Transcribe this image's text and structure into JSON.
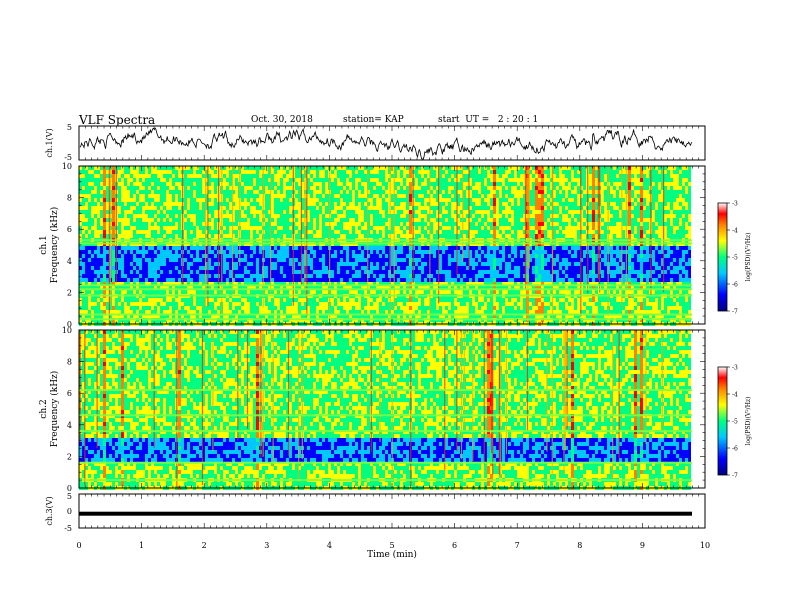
{
  "header": {
    "title": "VLF Spectra",
    "date": "Oct. 30, 2018",
    "station": "station= KAP",
    "start": "start  UT =   2 : 20 : 1"
  },
  "chart_data": [
    {
      "type": "line",
      "panel": "ch1-waveform",
      "ylabel": "ch.1(V)",
      "ylim": [
        -5,
        5
      ],
      "yticks": [
        "5",
        "-5"
      ],
      "xlim": [
        0,
        10
      ]
    },
    {
      "type": "heatmap",
      "panel": "ch1-spectrogram",
      "ylabel_top": "ch.1",
      "ylabel": "Frequency (kHz)",
      "ylim": [
        0,
        10
      ],
      "yticks": [
        "0",
        "2",
        "4",
        "6",
        "8",
        "10"
      ],
      "xlim": [
        0,
        10
      ],
      "colorbar": {
        "label": "log(PSD)(V²/Hz)",
        "range": [
          -7,
          -3
        ],
        "ticks": [
          "-3",
          "-4",
          "-5",
          "-6",
          "-7"
        ]
      },
      "bands_khz": [
        0.3,
        0.6,
        1.8,
        2.2,
        2.45,
        5.1,
        5.3
      ],
      "quiet_band_khz": [
        2.7,
        5.0
      ]
    },
    {
      "type": "heatmap",
      "panel": "ch2-spectrogram",
      "ylabel_top": "ch.2",
      "ylabel": "Frequency (kHz)",
      "ylim": [
        0,
        10
      ],
      "yticks": [
        "0",
        "2",
        "4",
        "6",
        "8",
        "10"
      ],
      "xlim": [
        0,
        10
      ],
      "colorbar": {
        "label": "log(PSD)(V²/Hz)",
        "range": [
          -7,
          -3
        ],
        "ticks": [
          "-3",
          "-4",
          "-5",
          "-6",
          "-7"
        ]
      },
      "bands_khz": [
        0.5,
        1.6,
        3.6,
        4.6,
        6.2
      ],
      "quiet_band_khz": [
        1.8,
        3.3
      ]
    },
    {
      "type": "line",
      "panel": "ch3-waveform",
      "ylabel": "ch.3(V)",
      "ylim": [
        -5,
        5
      ],
      "yticks": [
        "5",
        "0",
        "-5"
      ],
      "xlim": [
        0,
        10
      ],
      "value_v": -0.8
    }
  ],
  "xaxis": {
    "label": "Time (min)",
    "ticks": [
      "0",
      "1",
      "2",
      "3",
      "4",
      "5",
      "6",
      "7",
      "8",
      "9",
      "10"
    ]
  },
  "colors": {
    "scale": [
      "#000080",
      "#0000ff",
      "#00c8ff",
      "#00ff80",
      "#ffff00",
      "#ff8000",
      "#ff0000",
      "#ffffff"
    ]
  }
}
